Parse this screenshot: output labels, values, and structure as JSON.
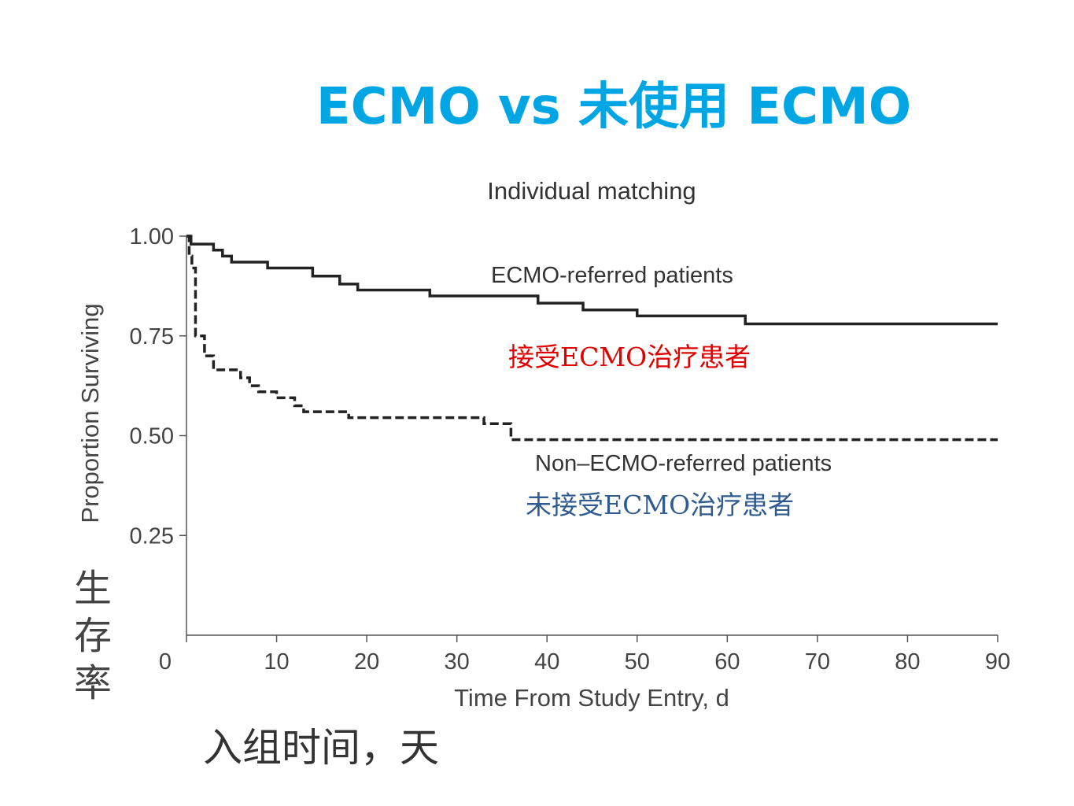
{
  "slide": {
    "title": "ECMO vs 未使用 ECMO",
    "ylabel_cn": "生存率",
    "xlabel_cn": "入组时间，天"
  },
  "chart_data": {
    "type": "line",
    "title": "Individual matching",
    "xlabel": "Time From Study Entry, d",
    "ylabel": "Proportion Surviving",
    "xlim": [
      0,
      90
    ],
    "ylim": [
      0,
      1
    ],
    "x_ticks": [
      0,
      10,
      20,
      30,
      40,
      50,
      60,
      70,
      80,
      90
    ],
    "y_ticks": [
      0.25,
      0.5,
      0.75,
      1.0
    ],
    "y_tick_labels": [
      "0.25",
      "0.50",
      "0.75",
      "1.00"
    ],
    "grid": false,
    "series": [
      {
        "name": "ECMO-referred patients",
        "name_cn": "接受ECMO治疗患者",
        "style": "solid",
        "color": "#222222",
        "steps": [
          [
            0,
            1.0
          ],
          [
            0.5,
            0.98
          ],
          [
            3,
            0.965
          ],
          [
            4,
            0.95
          ],
          [
            5,
            0.935
          ],
          [
            9,
            0.92
          ],
          [
            14,
            0.9
          ],
          [
            17,
            0.88
          ],
          [
            19,
            0.865
          ],
          [
            27,
            0.85
          ],
          [
            39,
            0.832
          ],
          [
            44,
            0.815
          ],
          [
            50,
            0.8
          ],
          [
            62,
            0.78
          ],
          [
            90,
            0.78
          ]
        ]
      },
      {
        "name": "Non–ECMO-referred patients",
        "name_cn": "未接受ECMO治疗患者",
        "style": "dashed",
        "color": "#222222",
        "steps": [
          [
            0,
            1.0
          ],
          [
            0.3,
            0.95
          ],
          [
            0.6,
            0.92
          ],
          [
            1,
            0.75
          ],
          [
            2,
            0.7
          ],
          [
            3,
            0.665
          ],
          [
            6,
            0.645
          ],
          [
            7,
            0.625
          ],
          [
            8,
            0.61
          ],
          [
            10,
            0.595
          ],
          [
            12,
            0.575
          ],
          [
            13,
            0.56
          ],
          [
            18,
            0.545
          ],
          [
            33,
            0.53
          ],
          [
            36,
            0.49
          ],
          [
            90,
            0.49
          ]
        ]
      }
    ],
    "annotations": {
      "label_colors": {
        "ecmo_cn": "#e00000",
        "non_ecmo_cn": "#2f5b8f"
      }
    }
  }
}
